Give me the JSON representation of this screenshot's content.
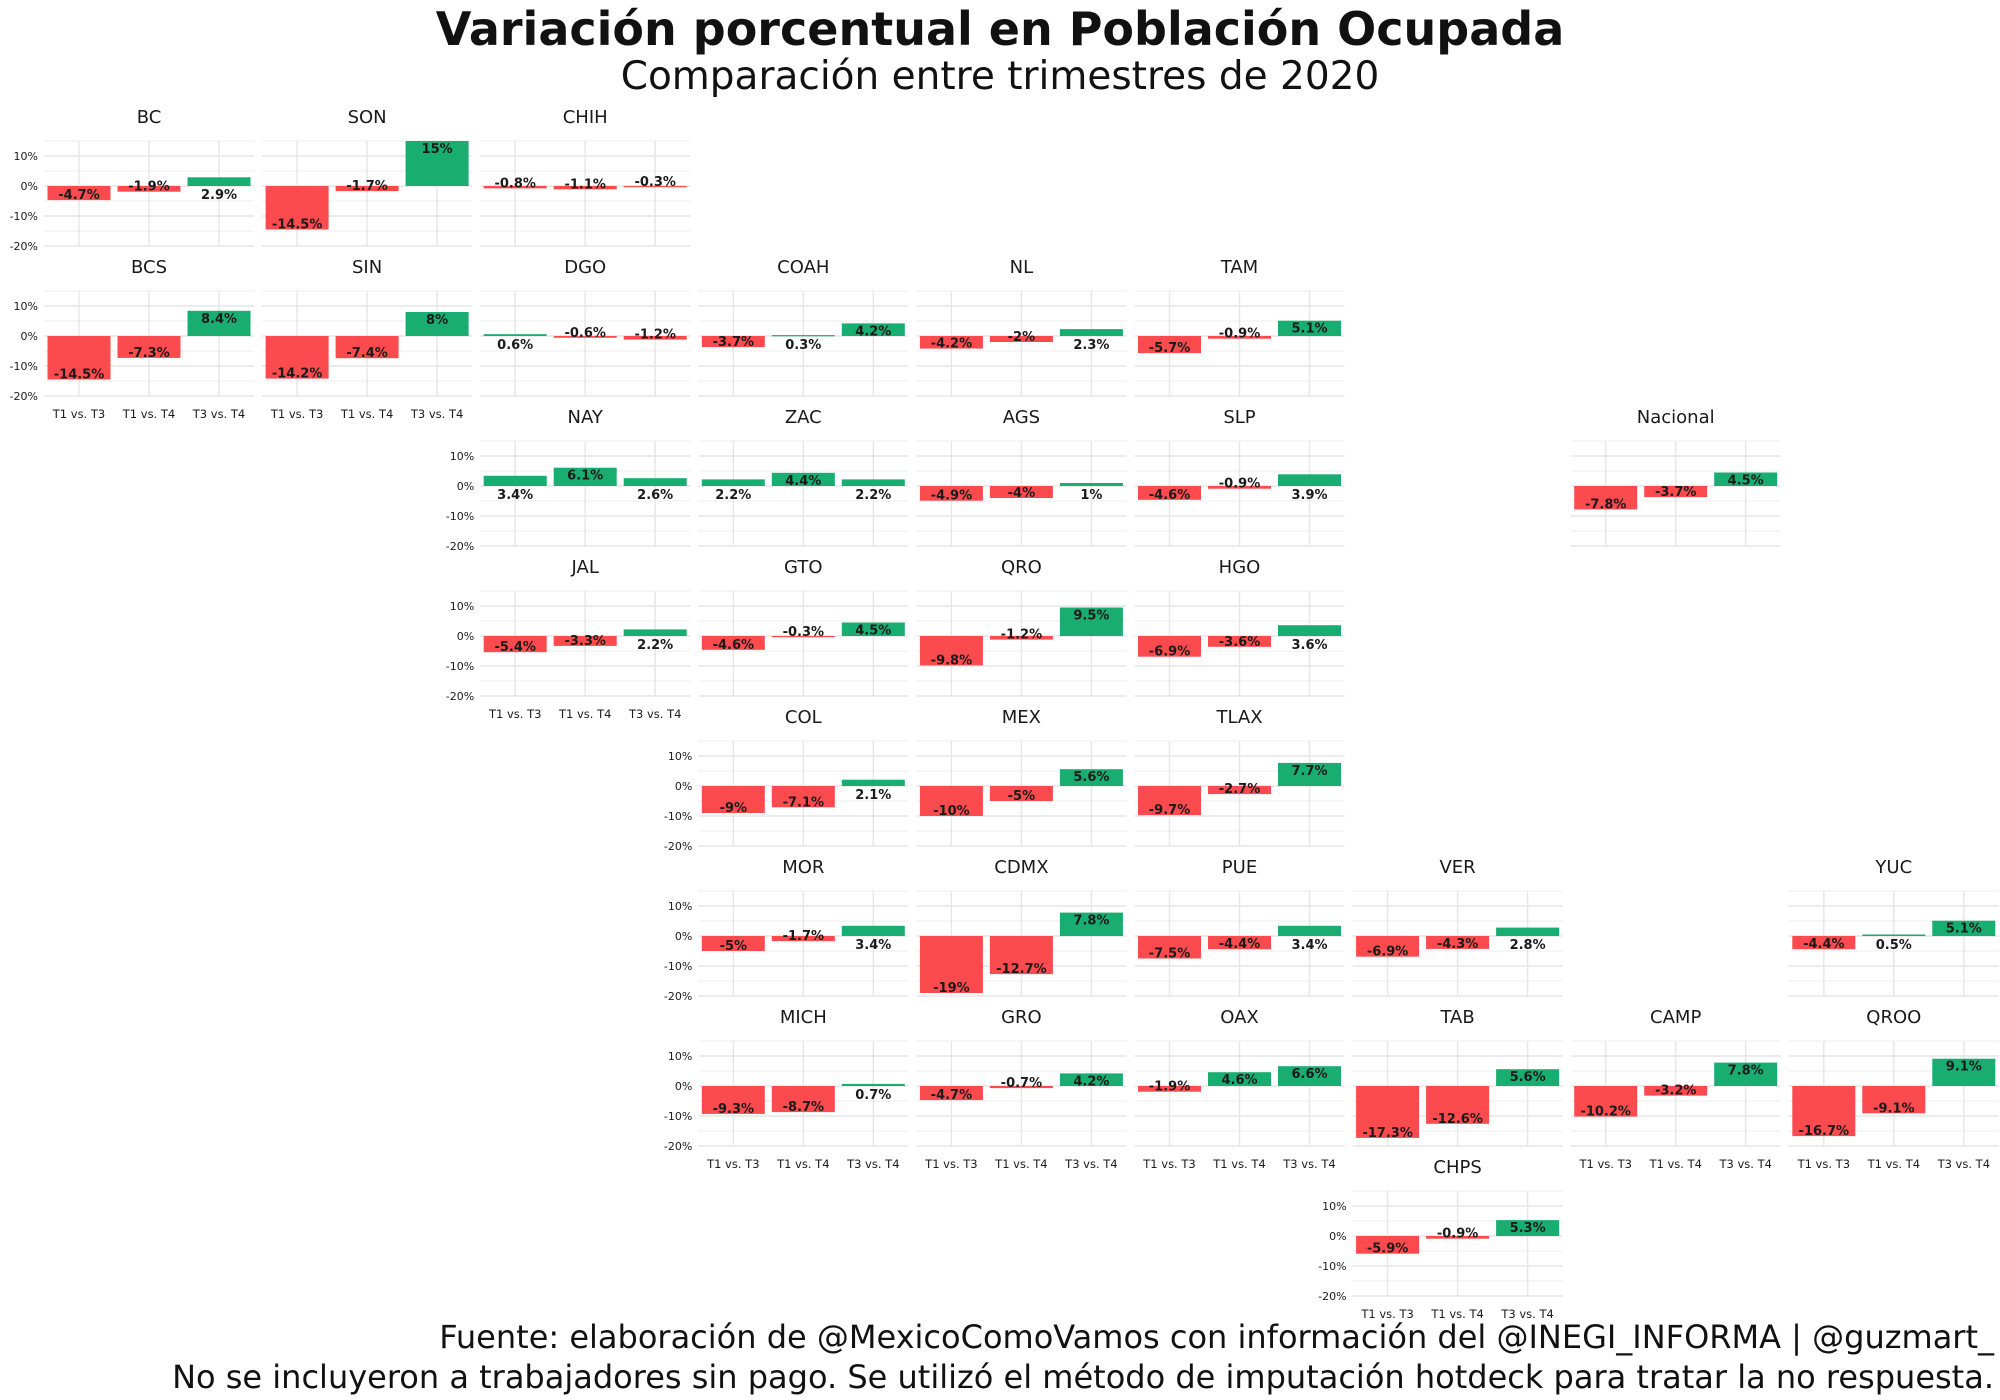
{
  "title": "Variación porcentual en Población Ocupada",
  "subtitle": "Comparación entre trimestres de 2020",
  "source_line1": "Fuente: elaboración de @MexicoComoVamos con información del @INEGI_INFORMA | @guzmart_",
  "source_line2": "No se incluyeron a trabajadores sin pago. Se utilizó el método de imputación hotdeck para tratar la no respuesta.",
  "colors": {
    "negative": "#FC4B4E",
    "positive": "#19AD72",
    "grid": "#E6E6E6",
    "text": "#1a1a1a"
  },
  "chart_data": {
    "type": "bar",
    "layout": "geofacet small multiples (tile grid of Mexican states)",
    "categories": [
      "T1 vs. T3",
      "T1 vs. T4",
      "T3 vs. T4"
    ],
    "y_ticks": [
      "10%",
      "0%",
      "-10%",
      "-20%"
    ],
    "ylim": [
      -20,
      15
    ],
    "unit": "%",
    "grid": true,
    "panels": [
      {
        "name": "BC",
        "col": 0,
        "row": 0,
        "values": [
          -4.7,
          -1.9,
          2.9
        ],
        "labels": [
          "-4.7%",
          "-1.9%",
          "2.9%"
        ]
      },
      {
        "name": "SON",
        "col": 1,
        "row": 0,
        "values": [
          -14.5,
          -1.7,
          15
        ],
        "labels": [
          "-14.5%",
          "-1.7%",
          "15%"
        ]
      },
      {
        "name": "CHIH",
        "col": 2,
        "row": 0,
        "values": [
          -0.8,
          -1.1,
          -0.3
        ],
        "labels": [
          "-0.8%",
          "-1.1%",
          "-0.3%"
        ]
      },
      {
        "name": "BCS",
        "col": 0,
        "row": 1,
        "values": [
          -14.5,
          -7.3,
          8.4
        ],
        "labels": [
          "-14.5%",
          "-7.3%",
          "8.4%"
        ]
      },
      {
        "name": "SIN",
        "col": 1,
        "row": 1,
        "values": [
          -14.2,
          -7.4,
          8
        ],
        "labels": [
          "-14.2%",
          "-7.4%",
          "8%"
        ]
      },
      {
        "name": "DGO",
        "col": 2,
        "row": 1,
        "values": [
          0.6,
          -0.6,
          -1.2
        ],
        "labels": [
          "0.6%",
          "-0.6%",
          "-1.2%"
        ]
      },
      {
        "name": "COAH",
        "col": 3,
        "row": 1,
        "values": [
          -3.7,
          0.3,
          4.2
        ],
        "labels": [
          "-3.7%",
          "0.3%",
          "4.2%"
        ]
      },
      {
        "name": "NL",
        "col": 4,
        "row": 1,
        "values": [
          -4.2,
          -2,
          2.3
        ],
        "labels": [
          "-4.2%",
          "-2%",
          "2.3%"
        ]
      },
      {
        "name": "TAM",
        "col": 5,
        "row": 1,
        "values": [
          -5.7,
          -0.9,
          5.1
        ],
        "labels": [
          "-5.7%",
          "-0.9%",
          "5.1%"
        ]
      },
      {
        "name": "NAY",
        "col": 2,
        "row": 2,
        "values": [
          3.4,
          6.1,
          2.6
        ],
        "labels": [
          "3.4%",
          "6.1%",
          "2.6%"
        ]
      },
      {
        "name": "ZAC",
        "col": 3,
        "row": 2,
        "values": [
          2.2,
          4.4,
          2.2
        ],
        "labels": [
          "2.2%",
          "4.4%",
          "2.2%"
        ]
      },
      {
        "name": "AGS",
        "col": 4,
        "row": 2,
        "values": [
          -4.9,
          -4,
          1
        ],
        "labels": [
          "-4.9%",
          "-4%",
          "1%"
        ]
      },
      {
        "name": "SLP",
        "col": 5,
        "row": 2,
        "values": [
          -4.6,
          -0.9,
          3.9
        ],
        "labels": [
          "-4.6%",
          "-0.9%",
          "3.9%"
        ]
      },
      {
        "name": "Nacional",
        "col": 7,
        "row": 2,
        "values": [
          -7.8,
          -3.7,
          4.5
        ],
        "labels": [
          "-7.8%",
          "-3.7%",
          "4.5%"
        ]
      },
      {
        "name": "JAL",
        "col": 2,
        "row": 3,
        "values": [
          -5.4,
          -3.3,
          2.2
        ],
        "labels": [
          "-5.4%",
          "-3.3%",
          "2.2%"
        ]
      },
      {
        "name": "GTO",
        "col": 3,
        "row": 3,
        "values": [
          -4.6,
          -0.3,
          4.5
        ],
        "labels": [
          "-4.6%",
          "-0.3%",
          "4.5%"
        ]
      },
      {
        "name": "QRO",
        "col": 4,
        "row": 3,
        "values": [
          -9.8,
          -1.2,
          9.5
        ],
        "labels": [
          "-9.8%",
          "-1.2%",
          "9.5%"
        ]
      },
      {
        "name": "HGO",
        "col": 5,
        "row": 3,
        "values": [
          -6.9,
          -3.6,
          3.6
        ],
        "labels": [
          "-6.9%",
          "-3.6%",
          "3.6%"
        ]
      },
      {
        "name": "COL",
        "col": 3,
        "row": 4,
        "values": [
          -9,
          -7.1,
          2.1
        ],
        "labels": [
          "-9%",
          "-7.1%",
          "2.1%"
        ]
      },
      {
        "name": "MEX",
        "col": 4,
        "row": 4,
        "values": [
          -10,
          -5,
          5.6
        ],
        "labels": [
          "-10%",
          "-5%",
          "5.6%"
        ]
      },
      {
        "name": "TLAX",
        "col": 5,
        "row": 4,
        "values": [
          -9.7,
          -2.7,
          7.7
        ],
        "labels": [
          "-9.7%",
          "-2.7%",
          "7.7%"
        ]
      },
      {
        "name": "MOR",
        "col": 3,
        "row": 5,
        "values": [
          -5,
          -1.7,
          3.4
        ],
        "labels": [
          "-5%",
          "-1.7%",
          "3.4%"
        ]
      },
      {
        "name": "CDMX",
        "col": 4,
        "row": 5,
        "values": [
          -19,
          -12.7,
          7.8
        ],
        "labels": [
          "-19%",
          "-12.7%",
          "7.8%"
        ]
      },
      {
        "name": "PUE",
        "col": 5,
        "row": 5,
        "values": [
          -7.5,
          -4.4,
          3.4
        ],
        "labels": [
          "-7.5%",
          "-4.4%",
          "3.4%"
        ]
      },
      {
        "name": "VER",
        "col": 6,
        "row": 5,
        "values": [
          -6.9,
          -4.3,
          2.8
        ],
        "labels": [
          "-6.9%",
          "-4.3%",
          "2.8%"
        ]
      },
      {
        "name": "YUC",
        "col": 8,
        "row": 5,
        "values": [
          -4.4,
          0.5,
          5.1
        ],
        "labels": [
          "-4.4%",
          "0.5%",
          "5.1%"
        ]
      },
      {
        "name": "MICH",
        "col": 3,
        "row": 6,
        "values": [
          -9.3,
          -8.7,
          0.7
        ],
        "labels": [
          "-9.3%",
          "-8.7%",
          "0.7%"
        ]
      },
      {
        "name": "GRO",
        "col": 4,
        "row": 6,
        "values": [
          -4.7,
          -0.7,
          4.2
        ],
        "labels": [
          "-4.7%",
          "-0.7%",
          "4.2%"
        ]
      },
      {
        "name": "OAX",
        "col": 5,
        "row": 6,
        "values": [
          -1.9,
          4.6,
          6.6
        ],
        "labels": [
          "-1.9%",
          "4.6%",
          "6.6%"
        ]
      },
      {
        "name": "TAB",
        "col": 6,
        "row": 6,
        "values": [
          -17.3,
          -12.6,
          5.6
        ],
        "labels": [
          "-17.3%",
          "-12.6%",
          "5.6%"
        ]
      },
      {
        "name": "CAMP",
        "col": 7,
        "row": 6,
        "values": [
          -10.2,
          -3.2,
          7.8
        ],
        "labels": [
          "-10.2%",
          "-3.2%",
          "7.8%"
        ]
      },
      {
        "name": "QROO",
        "col": 8,
        "row": 6,
        "values": [
          -16.7,
          -9.1,
          9.1
        ],
        "labels": [
          "-16.7%",
          "-9.1%",
          "9.1%"
        ]
      },
      {
        "name": "CHPS",
        "col": 6,
        "row": 7,
        "values": [
          -5.9,
          -0.9,
          5.3
        ],
        "labels": [
          "-5.9%",
          "-0.9%",
          "5.3%"
        ]
      }
    ]
  }
}
